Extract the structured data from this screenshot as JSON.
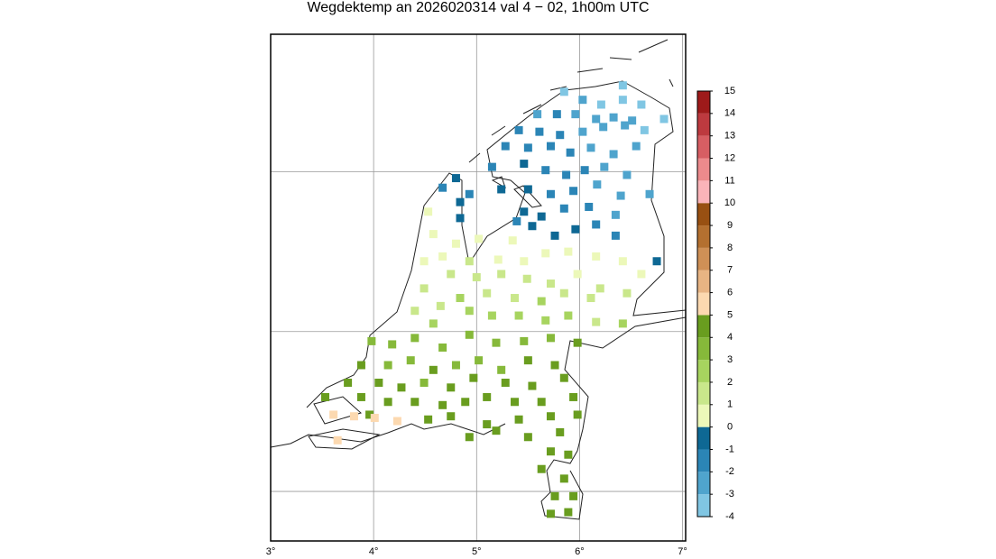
{
  "chart_data": {
    "type": "map",
    "title": "Wegdektemp an 2026020314 val 4 − 02, 1h00m UTC",
    "xlim": [
      3,
      7.03
    ],
    "ylim": [
      50.69,
      53.86
    ],
    "xticks": [
      {
        "value": 3,
        "label": "3°"
      },
      {
        "value": 4,
        "label": "4°"
      },
      {
        "value": 5,
        "label": "5°"
      },
      {
        "value": 6,
        "label": "6°"
      },
      {
        "value": 7,
        "label": "7°"
      }
    ],
    "yticks": [
      51,
      52,
      53
    ],
    "grid": true,
    "colorbar": {
      "ticks": [
        -4,
        -3,
        -2,
        -1,
        0,
        1,
        2,
        3,
        4,
        5,
        6,
        7,
        8,
        9,
        10,
        11,
        12,
        13,
        14,
        15
      ],
      "colors": [
        "#80c6e3",
        "#4fa4cd",
        "#2b85b6",
        "#0e6894",
        "#ecf8b9",
        "#c9e78b",
        "#a7d45f",
        "#86b93a",
        "#699d1f",
        "#fcd9b0",
        "#e8b483",
        "#cf9056",
        "#b47030",
        "#985012",
        "#fbb4b9",
        "#ec8a8c",
        "#d75e63",
        "#bd3a3f",
        "#9e1a1a"
      ]
    },
    "x": [
      5.85,
      6.42,
      6.03,
      6.21,
      6.42,
      6.6,
      5.59,
      5.78,
      5.96,
      6.16,
      6.33,
      6.51,
      6.82,
      5.41,
      5.61,
      5.81,
      6.03,
      6.23,
      6.44,
      6.63,
      5.28,
      5.5,
      5.72,
      5.91,
      6.11,
      6.33,
      6.55,
      5.15,
      5.46,
      5.67,
      5.87,
      6.05,
      6.24,
      6.46,
      4.8,
      4.67,
      4.93,
      5.24,
      5.5,
      5.72,
      5.94,
      6.17,
      6.4,
      6.68,
      4.84,
      5.46,
      5.63,
      5.85,
      6.09,
      6.35,
      4.84,
      5.54,
      5.76,
      5.96,
      6.16,
      6.35,
      6.75,
      5.39,
      4.53,
      4.58,
      4.49,
      4.8,
      5.02,
      5.35,
      4.67,
      4.93,
      5.21,
      5.46,
      5.67,
      5.89,
      6.16,
      6.42,
      6.6,
      4.75,
      5.0,
      5.24,
      5.49,
      5.72,
      5.98,
      6.2,
      6.46,
      4.49,
      4.65,
      4.84,
      5.1,
      5.37,
      5.63,
      5.85,
      6.11,
      4.4,
      4.58,
      4.93,
      5.15,
      5.41,
      5.67,
      5.89,
      6.16,
      6.42,
      3.98,
      4.18,
      4.4,
      4.67,
      4.93,
      5.19,
      5.46,
      5.72,
      5.98,
      3.88,
      4.14,
      4.36,
      4.58,
      4.8,
      5.02,
      5.24,
      5.5,
      5.76,
      4.05,
      4.27,
      4.49,
      4.75,
      4.97,
      5.28,
      5.54,
      5.85,
      3.75,
      3.53,
      3.88,
      4.14,
      4.4,
      4.67,
      4.89,
      5.1,
      5.37,
      5.63,
      5.94,
      3.96,
      4.53,
      4.75,
      5.1,
      5.41,
      5.72,
      5.98,
      4.93,
      5.19,
      5.5,
      5.81,
      5.72,
      5.89,
      5.63,
      5.85,
      5.76,
      5.94,
      5.72,
      5.89,
      3.61,
      3.81,
      4.01,
      4.23,
      3.65
    ],
    "y": [
      53.5,
      53.54,
      53.45,
      53.42,
      53.45,
      53.42,
      53.36,
      53.36,
      53.36,
      53.33,
      53.34,
      53.32,
      53.33,
      53.26,
      53.25,
      53.23,
      53.25,
      53.28,
      53.29,
      53.26,
      53.16,
      53.15,
      53.16,
      53.12,
      53.15,
      53.11,
      53.16,
      53.03,
      53.05,
      53.01,
      52.98,
      53.01,
      53.03,
      52.98,
      52.96,
      52.9,
      52.86,
      52.89,
      52.89,
      52.86,
      52.88,
      52.92,
      52.85,
      52.86,
      52.81,
      52.75,
      52.72,
      52.77,
      52.78,
      52.73,
      52.71,
      52.66,
      52.6,
      52.64,
      52.67,
      52.6,
      52.44,
      52.69,
      52.75,
      52.61,
      52.44,
      52.55,
      52.58,
      52.57,
      52.47,
      52.44,
      52.45,
      52.44,
      52.49,
      52.5,
      52.47,
      52.44,
      52.36,
      52.36,
      52.34,
      52.36,
      52.33,
      52.3,
      52.36,
      52.27,
      52.24,
      52.27,
      52.16,
      52.21,
      52.24,
      52.21,
      52.19,
      52.24,
      52.21,
      52.13,
      52.05,
      52.13,
      52.1,
      52.1,
      52.07,
      52.1,
      52.06,
      52.05,
      51.94,
      51.92,
      51.96,
      51.9,
      51.98,
      51.93,
      51.94,
      51.96,
      51.93,
      51.79,
      51.79,
      51.82,
      51.76,
      51.79,
      51.82,
      51.76,
      51.82,
      51.79,
      51.68,
      51.65,
      51.68,
      51.65,
      51.71,
      51.68,
      51.66,
      51.71,
      51.68,
      51.59,
      51.59,
      51.56,
      51.56,
      51.54,
      51.56,
      51.59,
      51.56,
      51.56,
      51.59,
      51.48,
      51.45,
      51.47,
      51.42,
      51.45,
      51.47,
      51.48,
      51.34,
      51.38,
      51.34,
      51.37,
      51.25,
      51.23,
      51.14,
      51.08,
      50.97,
      50.97,
      50.86,
      50.87,
      51.48,
      51.47,
      51.46,
      51.44,
      51.32
    ],
    "values": [
      -3.2,
      -3.5,
      -2.8,
      -3.1,
      -3.3,
      -3.4,
      -2.6,
      -1.8,
      -2.7,
      -2.5,
      -2.6,
      -2.9,
      -3.4,
      -1.7,
      -1.6,
      -1.8,
      -2.4,
      -2.6,
      -2.7,
      -3.1,
      -1.4,
      -1.5,
      -1.7,
      -1.6,
      -2.3,
      -2.5,
      -2.7,
      -1.5,
      -0.6,
      -1.4,
      -1.6,
      -1.7,
      -2.4,
      -2.6,
      -0.5,
      -1.3,
      -1.4,
      -0.7,
      -0.8,
      -1.5,
      -1.6,
      -2.2,
      -2.4,
      -2.6,
      -0.6,
      -0.7,
      -0.5,
      -1.3,
      -1.5,
      -2.2,
      -0.4,
      -0.6,
      -0.5,
      -0.7,
      -1.2,
      -1.4,
      -0.5,
      -1.2,
      0.4,
      0.5,
      0.6,
      0.3,
      0.5,
      0.4,
      0.7,
      1.3,
      0.8,
      0.6,
      0.5,
      0.6,
      0.7,
      0.5,
      0.8,
      1.2,
      1.4,
      1.3,
      1.5,
      1.2,
      0.9,
      1.3,
      1.4,
      1.5,
      1.6,
      2.2,
      1.6,
      1.7,
      2.1,
      1.6,
      1.5,
      1.7,
      2.3,
      2.4,
      2.3,
      2.5,
      2.2,
      2.3,
      1.8,
      2.2,
      3.4,
      3.5,
      3.3,
      3.6,
      3.4,
      3.5,
      3.6,
      3.7,
      4.2,
      4.1,
      3.6,
      3.5,
      4.2,
      3.7,
      3.6,
      3.8,
      4.2,
      4.3,
      4.3,
      4.4,
      3.8,
      4.3,
      4.2,
      4.4,
      4.3,
      4.5,
      4.2,
      4.4,
      4.3,
      4.5,
      4.4,
      4.6,
      4.5,
      4.4,
      4.6,
      4.5,
      4.4,
      4.5,
      4.6,
      4.5,
      4.6,
      4.5,
      4.7,
      4.4,
      4.6,
      4.5,
      4.7,
      4.6,
      4.6,
      4.7,
      4.5,
      4.6,
      4.7,
      4.6,
      4.5,
      4.6,
      5.4,
      5.5,
      5.3,
      5.4,
      5.5
    ]
  }
}
